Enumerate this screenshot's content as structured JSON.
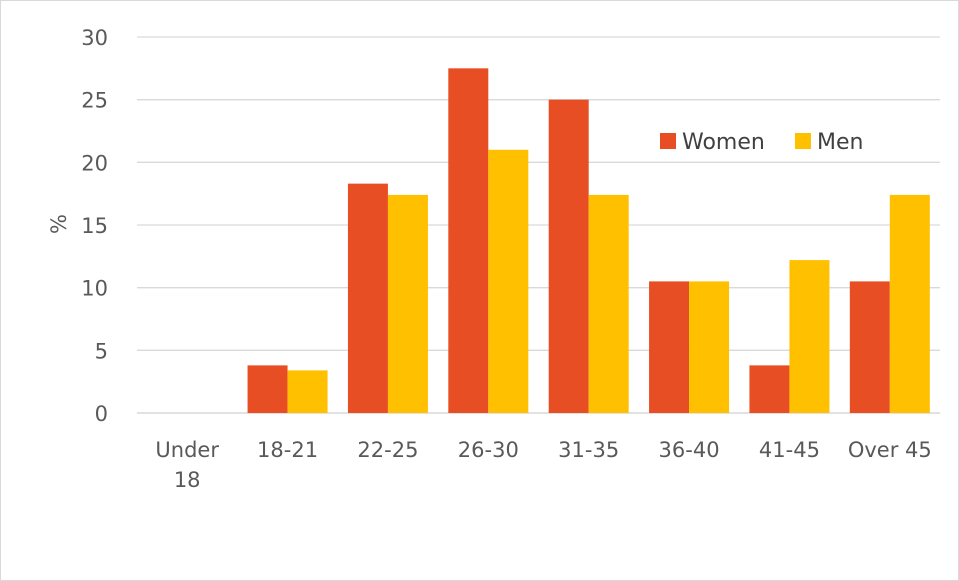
{
  "chart_data": {
    "type": "bar",
    "ylabel": "%",
    "xlabel": "",
    "ylim": [
      0,
      30
    ],
    "y_ticks": [
      0,
      5,
      10,
      15,
      20,
      25,
      30
    ],
    "categories": [
      [
        "Under",
        "18"
      ],
      [
        "18-21"
      ],
      [
        "22-25"
      ],
      [
        "26-30"
      ],
      [
        "31-35"
      ],
      [
        "36-40"
      ],
      [
        "41-45"
      ],
      [
        "Over 45"
      ]
    ],
    "series": [
      {
        "name": "Women",
        "color": "#e84e23",
        "values": [
          0,
          3.8,
          18.3,
          27.5,
          25.0,
          10.5,
          3.8,
          10.5
        ]
      },
      {
        "name": "Men",
        "color": "#ffc000",
        "values": [
          0,
          3.4,
          17.4,
          21.0,
          17.4,
          10.5,
          12.2,
          17.4
        ]
      }
    ],
    "grid": true,
    "legend_position": "top-right"
  }
}
